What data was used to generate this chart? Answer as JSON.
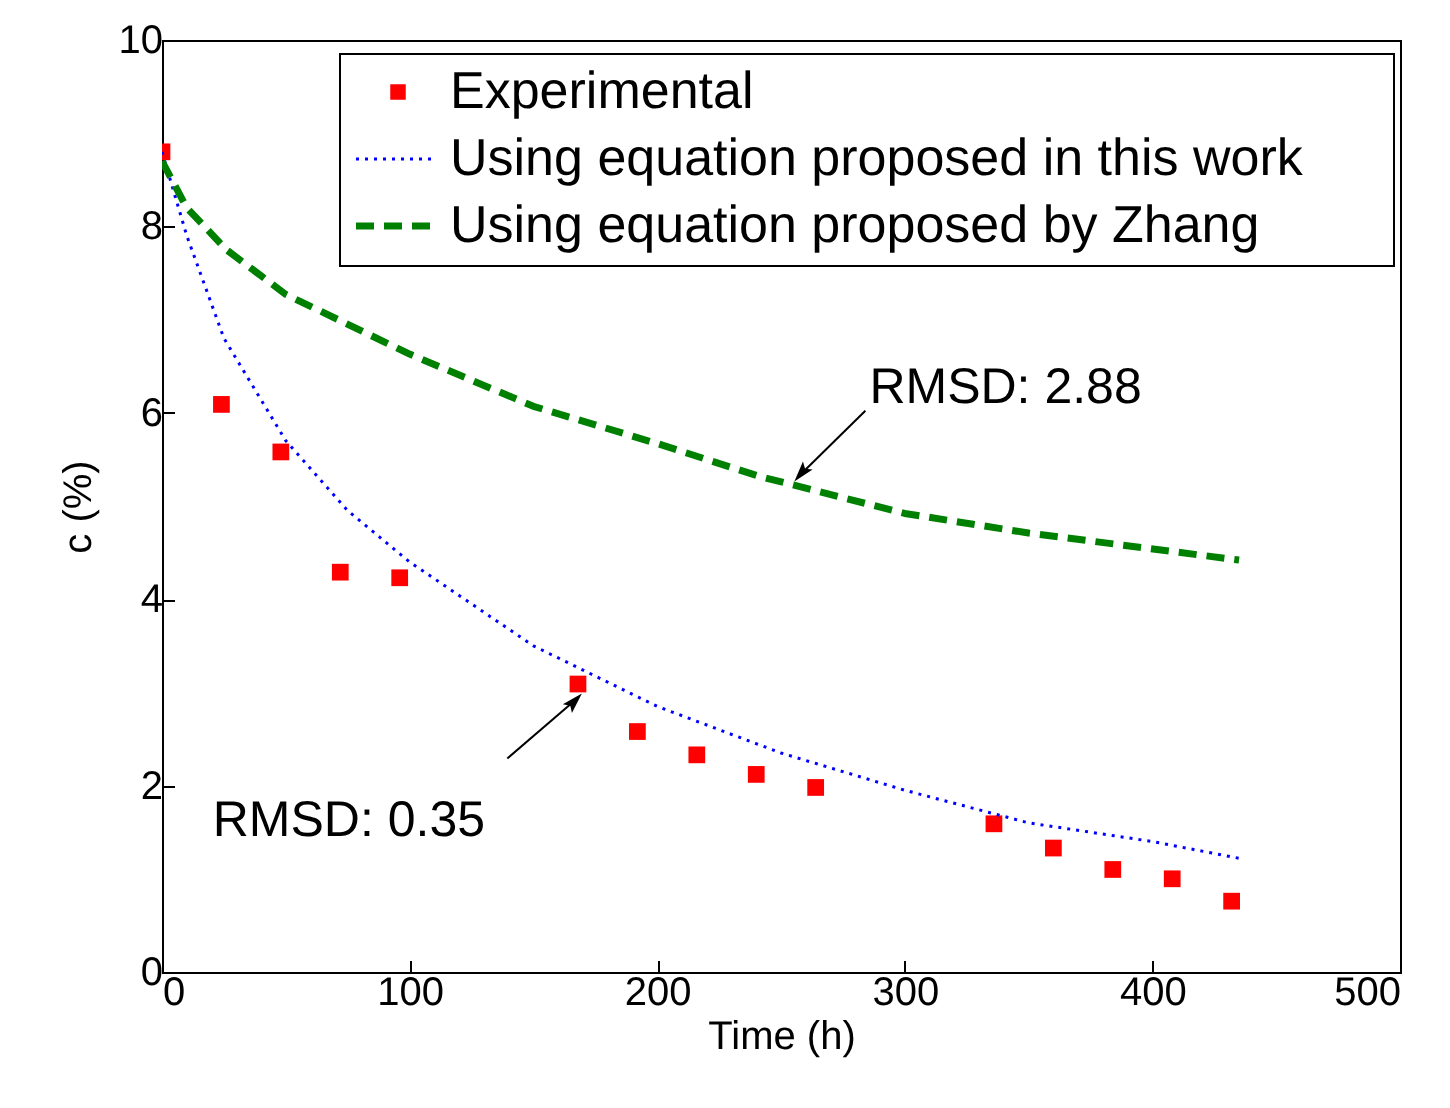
{
  "chart_data": {
    "type": "scatter",
    "xlabel": "Time (h)",
    "ylabel": "c (%)",
    "xlim": [
      0,
      500
    ],
    "ylim": [
      0,
      10
    ],
    "xticks": [
      0,
      100,
      200,
      300,
      400,
      500
    ],
    "yticks": [
      0,
      2,
      4,
      6,
      8,
      10
    ],
    "grid": false,
    "legend": "top right",
    "series": [
      {
        "name": "Experimental",
        "type": "scatter",
        "marker": "square",
        "color": "#ff0000",
        "x": [
          0,
          24,
          48,
          72,
          96,
          168,
          192,
          216,
          240,
          264,
          336,
          360,
          384,
          408,
          432
        ],
        "values": [
          8.8,
          6.09,
          5.58,
          4.29,
          4.23,
          3.09,
          2.58,
          2.33,
          2.12,
          1.98,
          1.59,
          1.33,
          1.1,
          1.0,
          0.76
        ]
      },
      {
        "name": "Using equation proposed in this work",
        "type": "line",
        "line_style": "dotted",
        "marker": "none",
        "color": "#0000ff",
        "x": [
          0,
          10,
          25,
          50,
          75,
          100,
          150,
          200,
          250,
          300,
          350,
          400,
          435
        ],
        "values": [
          8.8,
          7.9,
          6.8,
          5.7,
          4.95,
          4.4,
          3.5,
          2.85,
          2.35,
          1.95,
          1.6,
          1.4,
          1.22
        ]
      },
      {
        "name": "Using equation proposed by Zhang",
        "type": "line",
        "line_style": "dashed",
        "marker": "none",
        "color": "#008000",
        "x": [
          0,
          10,
          26,
          50,
          100,
          150,
          200,
          241,
          300,
          350,
          435
        ],
        "values": [
          8.7,
          8.2,
          7.75,
          7.27,
          6.63,
          6.07,
          5.67,
          5.32,
          4.92,
          4.71,
          4.42
        ]
      }
    ],
    "annotations": [
      {
        "text": "RMSD: 2.88",
        "x": 255,
        "y": 5.25
      },
      {
        "text": "RMSD: 0.35",
        "x": 170,
        "y": 3.0
      }
    ]
  }
}
